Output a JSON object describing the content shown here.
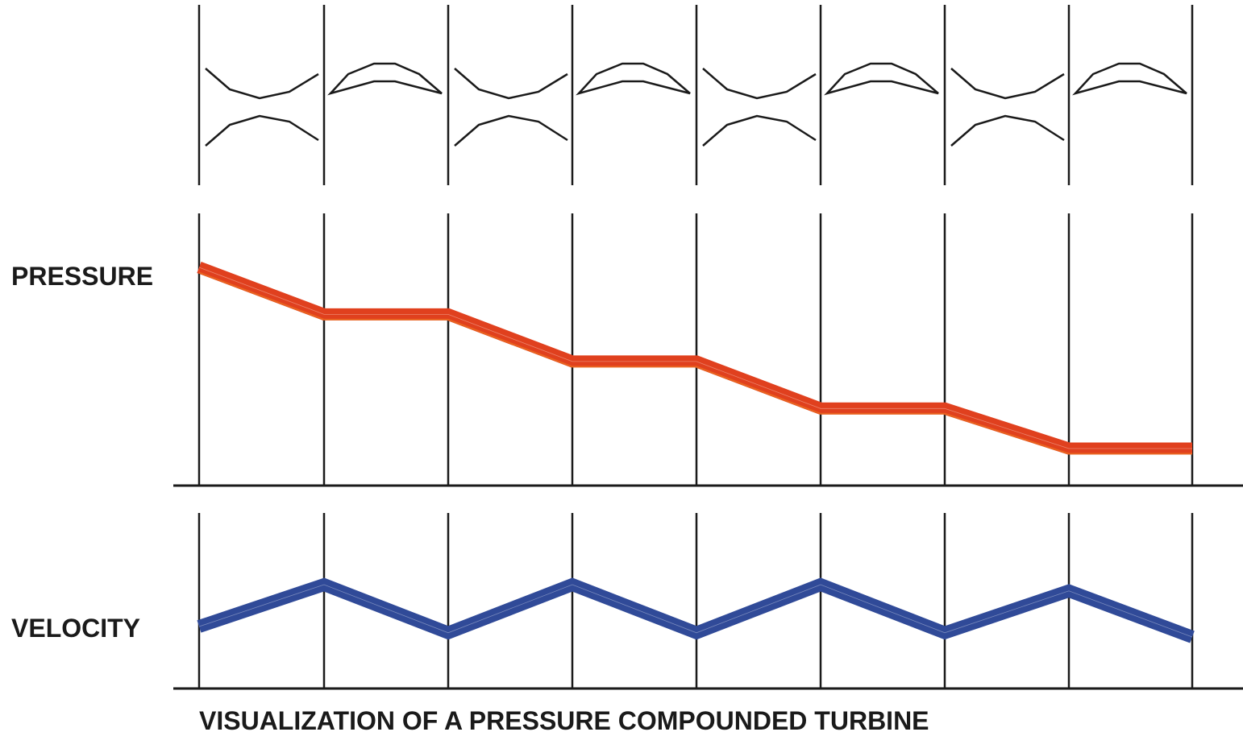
{
  "labels": {
    "pressure": "PRESSURE",
    "velocity": "VELOCITY",
    "caption": "VISUALIZATION OF A PRESSURE COMPOUNDED TURBINE"
  },
  "stages": [
    {
      "nozzle": "nozzle-profile",
      "blade": "moving-blade-profile"
    },
    {
      "nozzle": "nozzle-profile",
      "blade": "moving-blade-profile"
    },
    {
      "nozzle": "nozzle-profile",
      "blade": "moving-blade-profile"
    },
    {
      "nozzle": "nozzle-profile",
      "blade": "moving-blade-profile"
    }
  ],
  "pressure_profile": [
    10,
    8,
    8,
    6,
    6,
    4,
    4,
    2.3,
    2.3
  ],
  "velocity_profile": [
    2,
    4,
    1.7,
    4,
    1.7,
    4,
    1.7,
    3.7,
    1.5
  ],
  "colors": {
    "pressure": "#e0401e",
    "pressure_edge": "#f08020",
    "velocity": "#304a98",
    "lines": "#1a1a1a"
  }
}
